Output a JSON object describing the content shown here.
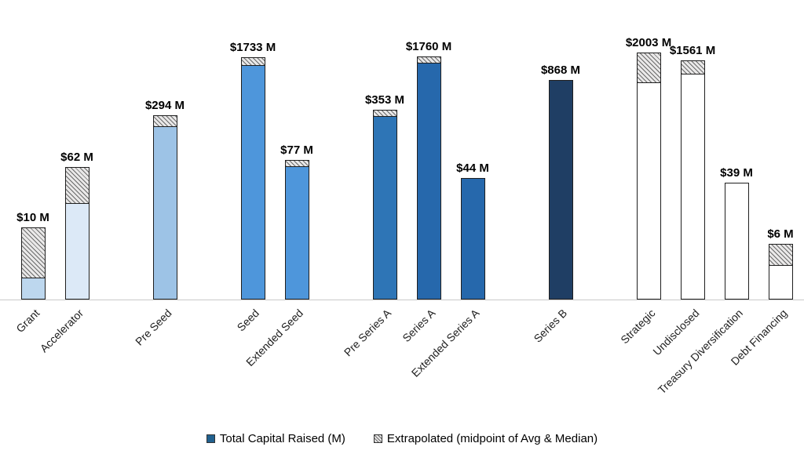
{
  "chart_data": {
    "type": "bar",
    "title": "",
    "xlabel": "",
    "ylabel": "",
    "y_scale": "log10",
    "grid": false,
    "legend_position": "bottom",
    "legend": [
      {
        "label": "Total Capital Raised (M)",
        "swatch": "solid",
        "color": "#21618F"
      },
      {
        "label": "Extrapolated (midpoint of Avg & Median)",
        "swatch": "hatched",
        "color": "#e9e8e8"
      }
    ],
    "bars": [
      {
        "category": "Grant",
        "label": "$10 M",
        "total": 10,
        "color": "#BDD7EE",
        "extrapolated_fraction": 0.7,
        "group": 0
      },
      {
        "category": "Accelerator",
        "label": "$62 M",
        "total": 62,
        "color": "#DCE9F7",
        "extrapolated_fraction": 0.27,
        "group": 0
      },
      {
        "category": "Pre Seed",
        "label": "$294 M",
        "total": 294,
        "color": "#9DC3E6",
        "extrapolated_fraction": 0.06,
        "group": 1
      },
      {
        "category": "Seed",
        "label": "$1733 M",
        "total": 1733,
        "color": "#4E96DB",
        "extrapolated_fraction": 0.032,
        "group": 2
      },
      {
        "category": "Extended Seed",
        "label": "$77 M",
        "total": 77,
        "color": "#4E96DB",
        "extrapolated_fraction": 0.045,
        "group": 2
      },
      {
        "category": "Pre Series A",
        "label": "$353 M",
        "total": 353,
        "color": "#2E75B6",
        "extrapolated_fraction": 0.035,
        "group": 3
      },
      {
        "category": "Series A",
        "label": "$1760 M",
        "total": 1760,
        "color": "#2668AC",
        "extrapolated_fraction": 0.026,
        "group": 3
      },
      {
        "category": "Extended Series A",
        "label": "$44 M",
        "total": 44,
        "color": "#2668AC",
        "extrapolated_fraction": 0,
        "group": 3
      },
      {
        "category": "Series B",
        "label": "$868 M",
        "total": 868,
        "color": "#1F3E64",
        "extrapolated_fraction": 0,
        "group": 4
      },
      {
        "category": "Strategic",
        "label": "$2003 M",
        "total": 2003,
        "color": "#FFFFFF",
        "extrapolated_fraction": 0.12,
        "group": 5
      },
      {
        "category": "Undisclosed",
        "label": "$1561 M",
        "total": 1561,
        "color": "#FFFFFF",
        "extrapolated_fraction": 0.055,
        "group": 5
      },
      {
        "category": "Treasury Diversification",
        "label": "$39 M",
        "total": 39,
        "color": "#FFFFFF",
        "extrapolated_fraction": 0,
        "group": 5
      },
      {
        "category": "Debt Financing",
        "label": "$6 M",
        "total": 6,
        "color": "#FFFFFF",
        "extrapolated_fraction": 0.38,
        "group": 5
      }
    ]
  }
}
